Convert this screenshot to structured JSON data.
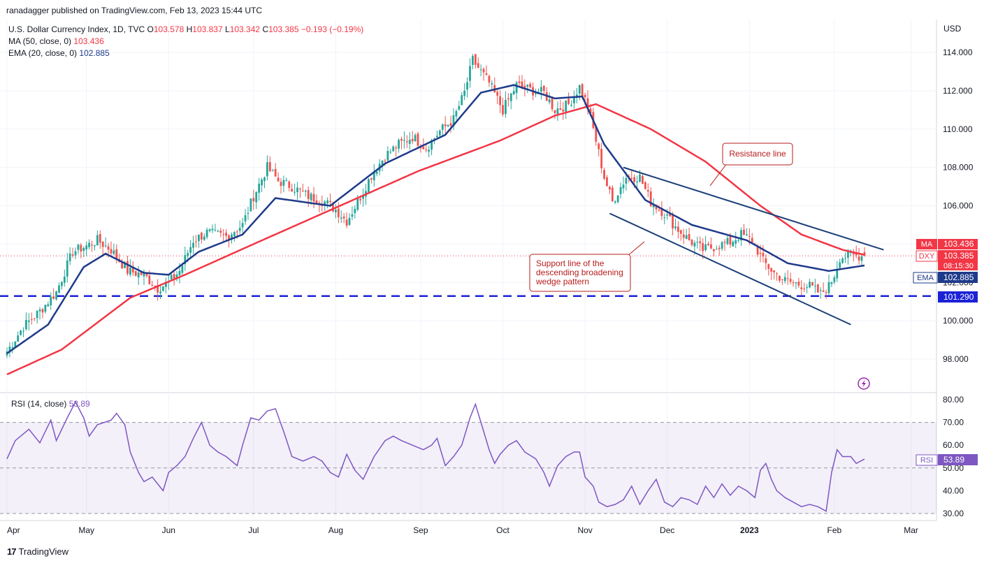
{
  "publisher": "ranadagger published on TradingView.com, Feb 13, 2023 15:44 UTC",
  "brand": "TradingView",
  "brand_logo": "17",
  "header": {
    "symbol": "U.S. Dollar Currency Index, 1D, TVC",
    "o_label": "O",
    "o": "103.578",
    "h_label": "H",
    "h": "103.837",
    "l_label": "L",
    "l": "103.342",
    "c_label": "C",
    "c": "103.385",
    "change": "−0.193 (−0.19%)",
    "ma_label": "MA (50, close, 0)",
    "ma_value": "103.436",
    "ema_label": "EMA (20, close, 0)",
    "ema_value": "102.885"
  },
  "rsi_header": {
    "label": "RSI (14, close)",
    "value": "53.89"
  },
  "badges": {
    "ma": {
      "name": "MA",
      "value": "103.436"
    },
    "dxy": {
      "name": "DXY",
      "value": "103.385",
      "timer": "08:15:30"
    },
    "ema": {
      "name": "EMA",
      "value": "102.885"
    },
    "level": {
      "value": "101.290"
    },
    "rsi": {
      "name": "RSI",
      "value": "53.89"
    }
  },
  "annotations": {
    "resistance": "Resistance line",
    "support_1": "Support line of the",
    "support_2": "descending broadening",
    "support_3": "wedge pattern"
  },
  "colors": {
    "up": "#26a69a",
    "down": "#ef5350",
    "ma": "#f23645",
    "ema": "#1e3a8a",
    "rsi": "#7e57c2",
    "level": "#1b22d6",
    "trend": "#1c3f78",
    "callout": "#b71c1c"
  },
  "chart_data": [
    {
      "type": "candlestick",
      "title": "U.S. Dollar Currency Index, 1D, TVC",
      "ylabel": "USD",
      "ylim": [
        97,
        115.5
      ],
      "y_ticks": [
        "98.000",
        "100.000",
        "102.000",
        "104.000",
        "106.000",
        "108.000",
        "110.000",
        "112.000",
        "114.000"
      ],
      "x_ticks": [
        "Apr",
        "May",
        "Jun",
        "Jul",
        "Aug",
        "Sep",
        "Oct",
        "Nov",
        "Dec",
        "2023",
        "Feb",
        "Mar"
      ],
      "x_tick_days": [
        0,
        29,
        59,
        90,
        120,
        151,
        181,
        211,
        241,
        271,
        302,
        330
      ],
      "close_anchors": [
        [
          0,
          98.4
        ],
        [
          6,
          99.7
        ],
        [
          12,
          100.5
        ],
        [
          18,
          101.5
        ],
        [
          24,
          103.6
        ],
        [
          29,
          103.9
        ],
        [
          33,
          104.2
        ],
        [
          38,
          103.7
        ],
        [
          44,
          102.6
        ],
        [
          50,
          102.4
        ],
        [
          55,
          101.7
        ],
        [
          59,
          102.0
        ],
        [
          63,
          102.6
        ],
        [
          68,
          104.2
        ],
        [
          73,
          104.6
        ],
        [
          80,
          104.4
        ],
        [
          86,
          105.0
        ],
        [
          90,
          106.5
        ],
        [
          95,
          108.0
        ],
        [
          99,
          107.3
        ],
        [
          104,
          107.0
        ],
        [
          110,
          106.5
        ],
        [
          116,
          106.2
        ],
        [
          120,
          105.8
        ],
        [
          124,
          105.2
        ],
        [
          128,
          106.2
        ],
        [
          133,
          107.6
        ],
        [
          138,
          108.6
        ],
        [
          143,
          109.2
        ],
        [
          148,
          109.6
        ],
        [
          153,
          109.0
        ],
        [
          158,
          109.9
        ],
        [
          163,
          110.5
        ],
        [
          167,
          111.9
        ],
        [
          170,
          113.6
        ],
        [
          173,
          113.0
        ],
        [
          176,
          112.4
        ],
        [
          181,
          111.0
        ],
        [
          186,
          112.3
        ],
        [
          192,
          112.0
        ],
        [
          196,
          111.9
        ],
        [
          200,
          111.0
        ],
        [
          205,
          111.3
        ],
        [
          209,
          112.2
        ],
        [
          212,
          111.2
        ],
        [
          215,
          109.4
        ],
        [
          218,
          107.5
        ],
        [
          221,
          106.2
        ],
        [
          226,
          107.5
        ],
        [
          231,
          107.5
        ],
        [
          235,
          106.2
        ],
        [
          240,
          105.6
        ],
        [
          244,
          104.9
        ],
        [
          249,
          104.2
        ],
        [
          254,
          103.7
        ],
        [
          259,
          103.9
        ],
        [
          264,
          104.1
        ],
        [
          268,
          104.5
        ],
        [
          272,
          104.2
        ],
        [
          276,
          103.1
        ],
        [
          280,
          102.5
        ],
        [
          284,
          102.1
        ],
        [
          289,
          101.9
        ],
        [
          293,
          101.8
        ],
        [
          297,
          101.4
        ],
        [
          300,
          101.8
        ],
        [
          302,
          102.4
        ],
        [
          304,
          103.3
        ],
        [
          308,
          103.4
        ],
        [
          313,
          103.385
        ]
      ],
      "open": 103.578,
      "high": 103.837,
      "low": 103.342,
      "close": 103.385,
      "ma50_anchors": [
        [
          0,
          97.2
        ],
        [
          20,
          98.5
        ],
        [
          45,
          101.2
        ],
        [
          65,
          102.4
        ],
        [
          90,
          104.0
        ],
        [
          120,
          105.9
        ],
        [
          150,
          107.8
        ],
        [
          180,
          109.4
        ],
        [
          200,
          110.7
        ],
        [
          215,
          111.3
        ],
        [
          235,
          110.0
        ],
        [
          255,
          108.3
        ],
        [
          275,
          106.0
        ],
        [
          290,
          104.5
        ],
        [
          305,
          103.7
        ],
        [
          313,
          103.436
        ]
      ],
      "ema20_anchors": [
        [
          0,
          98.3
        ],
        [
          15,
          99.8
        ],
        [
          28,
          102.8
        ],
        [
          36,
          103.5
        ],
        [
          50,
          102.5
        ],
        [
          59,
          102.4
        ],
        [
          70,
          103.6
        ],
        [
          86,
          104.5
        ],
        [
          98,
          106.4
        ],
        [
          118,
          106.0
        ],
        [
          138,
          108.2
        ],
        [
          160,
          109.7
        ],
        [
          173,
          111.9
        ],
        [
          185,
          112.3
        ],
        [
          200,
          111.6
        ],
        [
          210,
          111.7
        ],
        [
          218,
          109.2
        ],
        [
          233,
          106.3
        ],
        [
          250,
          105.0
        ],
        [
          270,
          104.2
        ],
        [
          285,
          103.0
        ],
        [
          300,
          102.6
        ],
        [
          313,
          102.885
        ]
      ],
      "horizontal_level": 101.29,
      "resistance_line": [
        [
          225,
          108.0
        ],
        [
          320,
          103.7
        ]
      ],
      "support_line": [
        [
          220,
          105.6
        ],
        [
          308,
          99.8
        ]
      ],
      "last_price": 103.385
    },
    {
      "type": "line",
      "title": "RSI (14, close)",
      "ylim": [
        28,
        81
      ],
      "y_ticks": [
        "30.00",
        "40.00",
        "50.00",
        "60.00",
        "70.00",
        "80.00"
      ],
      "band": [
        30,
        70
      ],
      "mid": 50,
      "anchors": [
        [
          0,
          54
        ],
        [
          3,
          62
        ],
        [
          8,
          67
        ],
        [
          12,
          61
        ],
        [
          16,
          71
        ],
        [
          18,
          62
        ],
        [
          22,
          72
        ],
        [
          25,
          79
        ],
        [
          28,
          72
        ],
        [
          30,
          64
        ],
        [
          33,
          69
        ],
        [
          38,
          71
        ],
        [
          40,
          74
        ],
        [
          43,
          69
        ],
        [
          45,
          57
        ],
        [
          48,
          48
        ],
        [
          50,
          44
        ],
        [
          53,
          46
        ],
        [
          57,
          40
        ],
        [
          59,
          48
        ],
        [
          62,
          51
        ],
        [
          65,
          55
        ],
        [
          68,
          63
        ],
        [
          71,
          70
        ],
        [
          74,
          60
        ],
        [
          77,
          57
        ],
        [
          80,
          55
        ],
        [
          84,
          51
        ],
        [
          86,
          60
        ],
        [
          89,
          72
        ],
        [
          92,
          71
        ],
        [
          95,
          75
        ],
        [
          98,
          76
        ],
        [
          101,
          66
        ],
        [
          104,
          55
        ],
        [
          108,
          53
        ],
        [
          112,
          55
        ],
        [
          115,
          53
        ],
        [
          118,
          48
        ],
        [
          121,
          46
        ],
        [
          124,
          56
        ],
        [
          127,
          49
        ],
        [
          130,
          45
        ],
        [
          134,
          55
        ],
        [
          138,
          62
        ],
        [
          141,
          64
        ],
        [
          144,
          62
        ],
        [
          148,
          60
        ],
        [
          152,
          58
        ],
        [
          155,
          60
        ],
        [
          157,
          63
        ],
        [
          160,
          51
        ],
        [
          163,
          55
        ],
        [
          166,
          60
        ],
        [
          169,
          72
        ],
        [
          171,
          78
        ],
        [
          174,
          66
        ],
        [
          176,
          58
        ],
        [
          178,
          52
        ],
        [
          180,
          56
        ],
        [
          183,
          60
        ],
        [
          186,
          62
        ],
        [
          189,
          57
        ],
        [
          193,
          54
        ],
        [
          196,
          48
        ],
        [
          198,
          42
        ],
        [
          201,
          51
        ],
        [
          204,
          55
        ],
        [
          207,
          57
        ],
        [
          209,
          57
        ],
        [
          211,
          46
        ],
        [
          214,
          42
        ],
        [
          216,
          35
        ],
        [
          219,
          33
        ],
        [
          222,
          34
        ],
        [
          225,
          36
        ],
        [
          228,
          42
        ],
        [
          231,
          34
        ],
        [
          234,
          40
        ],
        [
          237,
          45
        ],
        [
          240,
          35
        ],
        [
          243,
          33
        ],
        [
          246,
          37
        ],
        [
          249,
          36
        ],
        [
          252,
          34
        ],
        [
          255,
          42
        ],
        [
          258,
          37
        ],
        [
          261,
          43
        ],
        [
          264,
          38
        ],
        [
          267,
          42
        ],
        [
          270,
          40
        ],
        [
          273,
          37
        ],
        [
          275,
          49
        ],
        [
          277,
          52
        ],
        [
          279,
          45
        ],
        [
          281,
          40
        ],
        [
          284,
          37
        ],
        [
          287,
          35
        ],
        [
          290,
          33
        ],
        [
          293,
          34
        ],
        [
          296,
          33
        ],
        [
          299,
          31
        ],
        [
          301,
          48
        ],
        [
          303,
          58
        ],
        [
          305,
          55
        ],
        [
          308,
          55
        ],
        [
          310,
          52
        ],
        [
          313,
          53.89
        ]
      ]
    }
  ]
}
